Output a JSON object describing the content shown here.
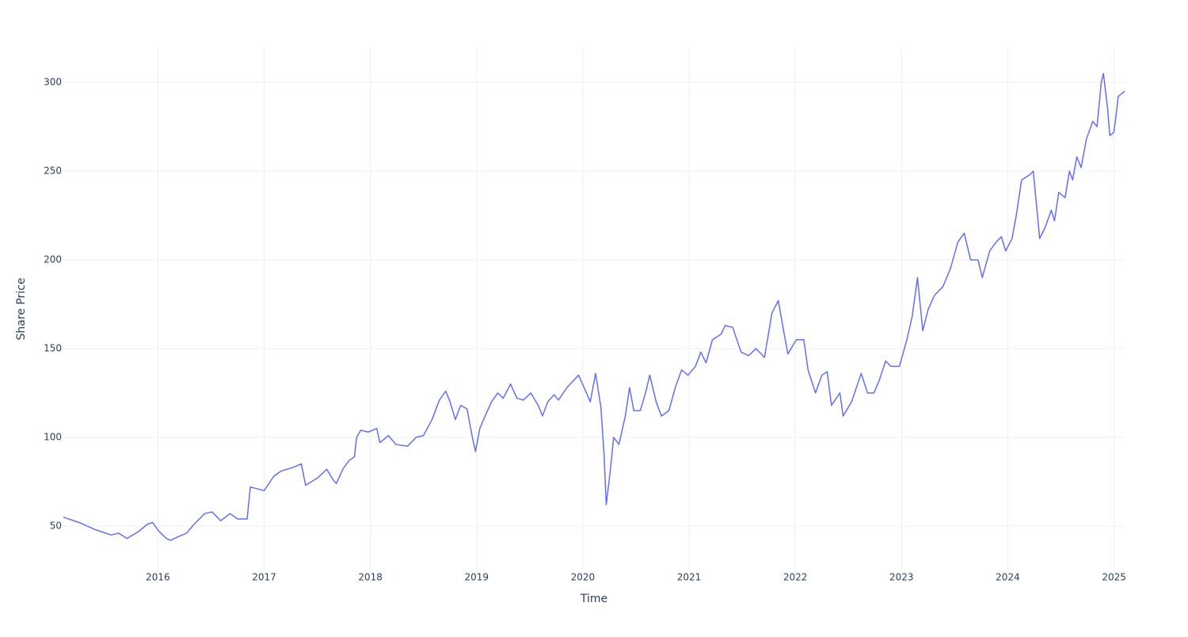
{
  "chart_data": {
    "type": "line",
    "xlabel": "Time",
    "ylabel": "Share Price",
    "x": [
      2015.11,
      2015.26,
      2015.41,
      2015.56,
      2015.63,
      2015.71,
      2015.82,
      2015.9,
      2015.95,
      2016.01,
      2016.08,
      2016.12,
      2016.19,
      2016.27,
      2016.34,
      2016.44,
      2016.51,
      2016.59,
      2016.68,
      2016.75,
      2016.84,
      2016.87,
      2017.0,
      2017.09,
      2017.16,
      2017.27,
      2017.35,
      2017.39,
      2017.5,
      2017.59,
      2017.65,
      2017.68,
      2017.74,
      2017.8,
      2017.85,
      2017.87,
      2017.91,
      2017.98,
      2018.06,
      2018.09,
      2018.17,
      2018.24,
      2018.35,
      2018.43,
      2018.5,
      2018.58,
      2018.65,
      2018.71,
      2018.75,
      2018.8,
      2018.85,
      2018.91,
      2018.96,
      2018.99,
      2019.03,
      2019.08,
      2019.14,
      2019.2,
      2019.25,
      2019.32,
      2019.38,
      2019.44,
      2019.51,
      2019.58,
      2019.62,
      2019.67,
      2019.73,
      2019.77,
      2019.85,
      2019.96,
      2019.99,
      2020.07,
      2020.12,
      2020.17,
      2020.2,
      2020.22,
      2020.26,
      2020.29,
      2020.34,
      2020.4,
      2020.44,
      2020.48,
      2020.54,
      2020.59,
      2020.63,
      2020.69,
      2020.74,
      2020.81,
      2020.87,
      2020.93,
      2020.99,
      2021.06,
      2021.11,
      2021.16,
      2021.22,
      2021.3,
      2021.34,
      2021.41,
      2021.49,
      2021.56,
      2021.63,
      2021.71,
      2021.78,
      2021.84,
      2021.89,
      2021.93,
      2022.01,
      2022.08,
      2022.12,
      2022.19,
      2022.25,
      2022.3,
      2022.34,
      2022.42,
      2022.45,
      2022.53,
      2022.62,
      2022.68,
      2022.74,
      2022.79,
      2022.85,
      2022.9,
      2022.98,
      2023.05,
      2023.1,
      2023.15,
      2023.2,
      2023.25,
      2023.31,
      2023.39,
      2023.46,
      2023.53,
      2023.59,
      2023.65,
      2023.72,
      2023.76,
      2023.83,
      2023.89,
      2023.94,
      2023.98,
      2024.04,
      2024.08,
      2024.13,
      2024.21,
      2024.24,
      2024.28,
      2024.3,
      2024.35,
      2024.41,
      2024.44,
      2024.48,
      2024.54,
      2024.58,
      2024.61,
      2024.65,
      2024.69,
      2024.74,
      2024.8,
      2024.84,
      2024.88,
      2024.9,
      2024.94,
      2024.96,
      2025.0,
      2025.04,
      2025.1
    ],
    "series": [
      {
        "color": "#636efa",
        "values": [
          55,
          52,
          48,
          45,
          46,
          43,
          47,
          51,
          52,
          47,
          43,
          42,
          44,
          46,
          51,
          57,
          58,
          53,
          57,
          54,
          54,
          72,
          70,
          78,
          81,
          83,
          85,
          73,
          77,
          82,
          76,
          74,
          82,
          87,
          89,
          100,
          104,
          103,
          105,
          97,
          101,
          96,
          95,
          100,
          101,
          110,
          121,
          126,
          120,
          110,
          118,
          116,
          100,
          92,
          105,
          112,
          120,
          125,
          122,
          130,
          122,
          121,
          125,
          118,
          112,
          120,
          124,
          121,
          128,
          135,
          131,
          120,
          136,
          117,
          90,
          62,
          82,
          100,
          96,
          112,
          128,
          115,
          115,
          125,
          135,
          120,
          112,
          115,
          128,
          138,
          135,
          140,
          148,
          142,
          155,
          158,
          163,
          162,
          148,
          146,
          150,
          145,
          170,
          177,
          160,
          147,
          155,
          155,
          138,
          125,
          135,
          137,
          118,
          125,
          112,
          120,
          136,
          125,
          125,
          132,
          143,
          140,
          140,
          155,
          168,
          190,
          160,
          172,
          180,
          185,
          195,
          210,
          215,
          200,
          200,
          190,
          205,
          210,
          213,
          205,
          212,
          225,
          245,
          248,
          250,
          225,
          212,
          218,
          228,
          222,
          238,
          235,
          250,
          245,
          258,
          252,
          268,
          278,
          275,
          300,
          305,
          285,
          270,
          272,
          292,
          295
        ]
      }
    ],
    "xlim": [
      2015.11,
      2025.1
    ],
    "xticks": [
      2016,
      2017,
      2018,
      2019,
      2020,
      2021,
      2022,
      2023,
      2024,
      2025
    ],
    "ylim": [
      25,
      319.6
    ],
    "yticks": [
      50,
      100,
      150,
      200,
      250,
      300
    ],
    "grid": true
  }
}
